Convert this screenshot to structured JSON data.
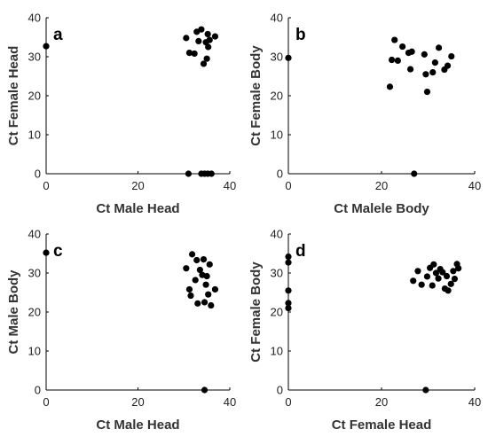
{
  "chart_data": [
    {
      "type": "scatter",
      "panel_label": "a",
      "xlabel": "Ct Male Head",
      "ylabel": "Ct Female Head",
      "xlim": [
        0,
        40
      ],
      "ylim": [
        0,
        40
      ],
      "xticks": [
        0,
        20,
        40
      ],
      "yticks": [
        0,
        10,
        20,
        30,
        40
      ],
      "grid": false,
      "points": [
        {
          "x": 0,
          "y": 32.7
        },
        {
          "x": 30.5,
          "y": 34.8
        },
        {
          "x": 31.2,
          "y": 31
        },
        {
          "x": 32.3,
          "y": 30.8
        },
        {
          "x": 32.8,
          "y": 36.4
        },
        {
          "x": 33.2,
          "y": 34
        },
        {
          "x": 33.8,
          "y": 37
        },
        {
          "x": 34.3,
          "y": 28.2
        },
        {
          "x": 34.8,
          "y": 33.7
        },
        {
          "x": 35,
          "y": 29.5
        },
        {
          "x": 35.3,
          "y": 32.5
        },
        {
          "x": 35.2,
          "y": 35.8
        },
        {
          "x": 35.6,
          "y": 34.3
        },
        {
          "x": 36.8,
          "y": 35.2
        },
        {
          "x": 31,
          "y": 0
        },
        {
          "x": 33.8,
          "y": 0
        },
        {
          "x": 34.5,
          "y": 0
        },
        {
          "x": 35.2,
          "y": 0
        },
        {
          "x": 36,
          "y": 0
        }
      ]
    },
    {
      "type": "scatter",
      "panel_label": "b",
      "xlabel": "Ct Malele Body",
      "ylabel": "Ct Female Body",
      "xlim": [
        0,
        40
      ],
      "ylim": [
        0,
        40
      ],
      "xticks": [
        0,
        20,
        40
      ],
      "yticks": [
        0,
        10,
        20,
        30,
        40
      ],
      "grid": false,
      "points": [
        {
          "x": 0,
          "y": 29.7
        },
        {
          "x": 21.8,
          "y": 22.3
        },
        {
          "x": 22.2,
          "y": 29.2
        },
        {
          "x": 22.8,
          "y": 34.3
        },
        {
          "x": 23.5,
          "y": 29
        },
        {
          "x": 24.5,
          "y": 32.6
        },
        {
          "x": 25.8,
          "y": 31
        },
        {
          "x": 26.2,
          "y": 26.8
        },
        {
          "x": 26.5,
          "y": 31.3
        },
        {
          "x": 29.2,
          "y": 30.6
        },
        {
          "x": 29.5,
          "y": 25.5
        },
        {
          "x": 29.8,
          "y": 21
        },
        {
          "x": 31,
          "y": 26
        },
        {
          "x": 31.5,
          "y": 28.5
        },
        {
          "x": 32.3,
          "y": 32.3
        },
        {
          "x": 33.5,
          "y": 26.7
        },
        {
          "x": 34.2,
          "y": 27.7
        },
        {
          "x": 35,
          "y": 30.1
        },
        {
          "x": 27,
          "y": 0
        }
      ]
    },
    {
      "type": "scatter",
      "panel_label": "c",
      "xlabel": "Ct Male Head",
      "ylabel": "Ct Male Body",
      "xlim": [
        0,
        40
      ],
      "ylim": [
        0,
        40
      ],
      "xticks": [
        0,
        20,
        40
      ],
      "yticks": [
        0,
        10,
        20,
        30,
        40
      ],
      "grid": false,
      "points": [
        {
          "x": 0,
          "y": 35.2
        },
        {
          "x": 30.5,
          "y": 31.2
        },
        {
          "x": 31.2,
          "y": 25.8
        },
        {
          "x": 31.5,
          "y": 24.2
        },
        {
          "x": 31.8,
          "y": 34.8
        },
        {
          "x": 32.5,
          "y": 28.2
        },
        {
          "x": 32.8,
          "y": 33.3
        },
        {
          "x": 33,
          "y": 22.2
        },
        {
          "x": 33.5,
          "y": 30.8
        },
        {
          "x": 34,
          "y": 29.5
        },
        {
          "x": 34.3,
          "y": 33.5
        },
        {
          "x": 34.5,
          "y": 22.5
        },
        {
          "x": 34.8,
          "y": 27
        },
        {
          "x": 35,
          "y": 29.2
        },
        {
          "x": 35.3,
          "y": 24.5
        },
        {
          "x": 35.6,
          "y": 32.2
        },
        {
          "x": 35.9,
          "y": 21.7
        },
        {
          "x": 36.8,
          "y": 25.8
        },
        {
          "x": 34.5,
          "y": 0
        }
      ]
    },
    {
      "type": "scatter",
      "panel_label": "d",
      "xlabel": "Ct Female Head",
      "ylabel": "Ct Female Body",
      "xlim": [
        0,
        40
      ],
      "ylim": [
        0,
        40
      ],
      "xticks": [
        0,
        20,
        40
      ],
      "yticks": [
        0,
        10,
        20,
        30,
        40
      ],
      "grid": false,
      "points": [
        {
          "x": 0,
          "y": 34.2
        },
        {
          "x": 0,
          "y": 32.7
        },
        {
          "x": 0,
          "y": 25.5
        },
        {
          "x": 0,
          "y": 22.3
        },
        {
          "x": 0,
          "y": 21
        },
        {
          "x": 26.8,
          "y": 28
        },
        {
          "x": 27.8,
          "y": 30.5
        },
        {
          "x": 28.6,
          "y": 27
        },
        {
          "x": 29.8,
          "y": 29.1
        },
        {
          "x": 30.4,
          "y": 31.3
        },
        {
          "x": 30.9,
          "y": 26.8
        },
        {
          "x": 31.2,
          "y": 32.2
        },
        {
          "x": 31.7,
          "y": 30
        },
        {
          "x": 32.2,
          "y": 28.6
        },
        {
          "x": 32.6,
          "y": 31
        },
        {
          "x": 33.1,
          "y": 30.2
        },
        {
          "x": 33.6,
          "y": 26
        },
        {
          "x": 34,
          "y": 29.2
        },
        {
          "x": 34.3,
          "y": 25.5
        },
        {
          "x": 34.9,
          "y": 27.2
        },
        {
          "x": 35.4,
          "y": 30.5
        },
        {
          "x": 35.7,
          "y": 28.5
        },
        {
          "x": 36.2,
          "y": 32.3
        },
        {
          "x": 36.5,
          "y": 31.2
        },
        {
          "x": 29.5,
          "y": 0
        }
      ]
    }
  ]
}
